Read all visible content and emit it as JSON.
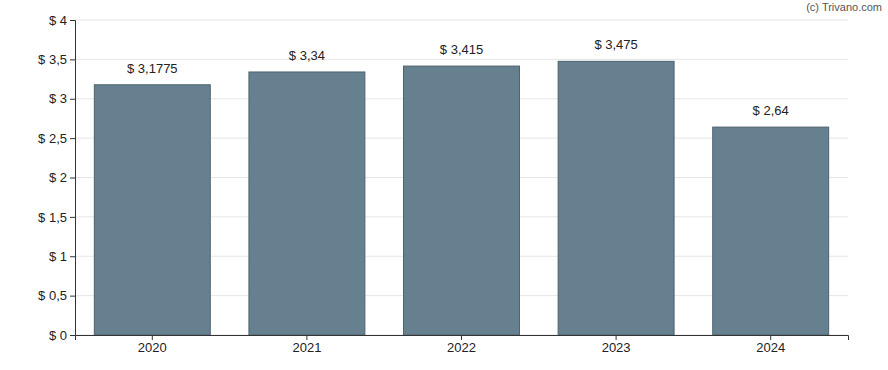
{
  "chart_data": {
    "type": "bar",
    "annotations": [
      "(c) Trivano.com"
    ],
    "categories": [
      "2020",
      "2021",
      "2022",
      "2023",
      "2024"
    ],
    "values": [
      3.1775,
      3.34,
      3.415,
      3.475,
      2.64
    ],
    "value_labels": [
      "$ 3,1775",
      "$ 3,34",
      "$ 3,415",
      "$ 3,475",
      "$ 2,64"
    ],
    "data_labels": true,
    "color": "#67808f",
    "ylim": [
      0,
      4
    ],
    "yticks": [
      {
        "value": 0,
        "label": "$ 0"
      },
      {
        "value": 0.5,
        "label": "$ 0,5"
      },
      {
        "value": 1,
        "label": "$ 1"
      },
      {
        "value": 1.5,
        "label": "$ 1,5"
      },
      {
        "value": 2,
        "label": "$ 2"
      },
      {
        "value": 2.5,
        "label": "$ 2,5"
      },
      {
        "value": 3,
        "label": "$ 3"
      },
      {
        "value": 3.5,
        "label": "$ 3,5"
      },
      {
        "value": 4,
        "label": "$ 4"
      }
    ],
    "grid": true
  }
}
